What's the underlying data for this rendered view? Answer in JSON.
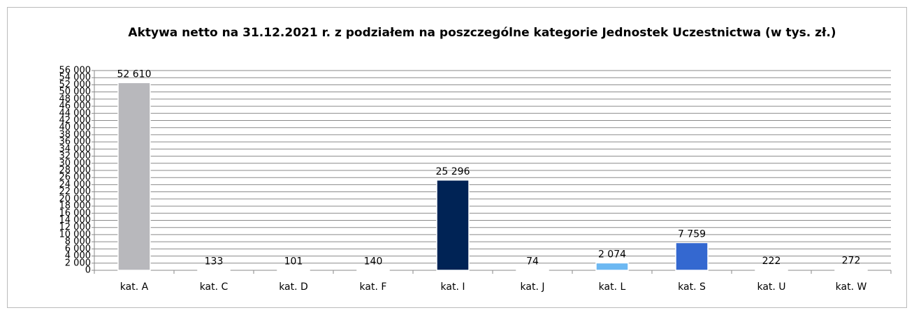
{
  "chart_data": {
    "type": "bar",
    "title": "Aktywa netto na 31.12.2021 r. z podziałem na poszczególne kategorie Jednostek Uczestnictwa (w tys. zł.)",
    "categories": [
      "kat. A",
      "kat. C",
      "kat. D",
      "kat. F",
      "kat. I",
      "kat. J",
      "kat. L",
      "kat. S",
      "kat. U",
      "kat. W"
    ],
    "values": [
      52610,
      133,
      101,
      140,
      25296,
      74,
      2074,
      7759,
      222,
      272
    ],
    "value_labels": [
      "52 610",
      "133",
      "101",
      "140",
      "25 296",
      "74",
      "2 074",
      "7 759",
      "222",
      "272"
    ],
    "colors": [
      "#b8b8bc",
      "#4f81bd",
      "#4f81bd",
      "#4f81bd",
      "#002355",
      "#4f81bd",
      "#6cb8f2",
      "#3468d0",
      "#4f81bd",
      "#4f81bd"
    ],
    "ylim": [
      0,
      56000
    ],
    "yticks": [
      0,
      {
        "value": 2000,
        "label": "2 000"
      },
      {
        "value": 4000,
        "label": "4 000"
      },
      {
        "value": 6000,
        "label": "6 000"
      },
      {
        "value": 8000,
        "label": "8 000"
      },
      {
        "value": 10000,
        "label": "10 000"
      },
      {
        "value": 12000,
        "label": "12 000"
      },
      {
        "value": 14000,
        "label": "14 000"
      },
      {
        "value": 16000,
        "label": "16 000"
      },
      {
        "value": 18000,
        "label": "18 000"
      },
      {
        "value": 20000,
        "label": "20 000"
      },
      {
        "value": 22000,
        "label": "22 000"
      },
      {
        "value": 24000,
        "label": "24 000"
      },
      {
        "value": 26000,
        "label": "26 000"
      },
      {
        "value": 28000,
        "label": "28 000"
      },
      {
        "value": 30000,
        "label": "30 000"
      },
      {
        "value": 32000,
        "label": "32 000"
      },
      {
        "value": 34000,
        "label": "34 000"
      },
      {
        "value": 36000,
        "label": "36 000"
      },
      {
        "value": 38000,
        "label": "38 000"
      },
      {
        "value": 40000,
        "label": "40 000"
      },
      {
        "value": 42000,
        "label": "42 000"
      },
      {
        "value": 44000,
        "label": "44 000"
      },
      {
        "value": 46000,
        "label": "46 000"
      },
      {
        "value": 48000,
        "label": "48 000"
      },
      {
        "value": 50000,
        "label": "50 000"
      },
      {
        "value": 52000,
        "label": "52 000"
      },
      {
        "value": 54000,
        "label": "54 000"
      },
      {
        "value": 56000,
        "label": "56 000"
      }
    ],
    "grid": true
  }
}
